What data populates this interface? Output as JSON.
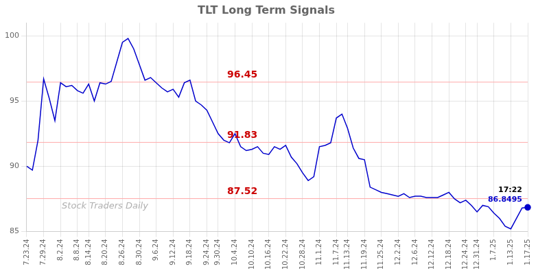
{
  "chart_data": {
    "type": "line",
    "title": "TLT Long Term Signals",
    "categories": [
      "7.23.24",
      null,
      null,
      "7.29.24",
      null,
      null,
      "8.2.24",
      null,
      null,
      "8.8.24",
      null,
      "8.14.24",
      null,
      null,
      "8.20.24",
      null,
      null,
      "8.26.24",
      null,
      null,
      "8.30.24",
      null,
      null,
      "9.6.24",
      null,
      null,
      "9.12.24",
      null,
      null,
      "9.18.24",
      null,
      null,
      "9.24.24",
      null,
      "9.30.24",
      null,
      null,
      "10.4.24",
      null,
      null,
      "10.10.24",
      null,
      null,
      "10.16.24",
      null,
      null,
      "10.22.24",
      null,
      null,
      "10.28.24",
      null,
      null,
      "11.1.24",
      null,
      null,
      "11.7.24",
      null,
      "11.13.24",
      null,
      null,
      "11.19.24",
      null,
      null,
      "11.25.24",
      null,
      null,
      "12.2.24",
      null,
      null,
      "12.6.24",
      null,
      null,
      "12.12.24",
      null,
      null,
      "12.18.24",
      null,
      null,
      "12.24.24",
      null,
      "12.31.24",
      null,
      null,
      "1.7.25",
      null,
      null,
      "1.13.25",
      null,
      null,
      "1.17.25"
    ],
    "values": [
      90.0,
      89.7,
      92.0,
      96.7,
      95.2,
      93.5,
      96.4,
      96.1,
      96.2,
      95.8,
      95.6,
      96.3,
      95.0,
      96.4,
      96.3,
      96.5,
      98.0,
      99.5,
      99.8,
      99.0,
      97.8,
      96.6,
      96.8,
      96.4,
      96.0,
      95.7,
      95.9,
      95.3,
      96.4,
      96.6,
      95.0,
      94.7,
      94.3,
      93.4,
      92.5,
      92.0,
      91.8,
      92.5,
      91.5,
      91.2,
      91.3,
      91.5,
      91.0,
      90.9,
      91.5,
      91.3,
      91.6,
      90.7,
      90.2,
      89.5,
      88.9,
      89.2,
      91.5,
      91.6,
      91.8,
      93.7,
      94.0,
      92.9,
      91.4,
      90.6,
      90.5,
      88.4,
      88.2,
      88.0,
      87.9,
      87.8,
      87.7,
      87.9,
      87.6,
      87.7,
      87.7,
      87.6,
      87.6,
      87.6,
      87.8,
      88.0,
      87.5,
      87.2,
      87.4,
      87.0,
      86.5,
      87.0,
      86.9,
      86.4,
      86.0,
      85.4,
      85.2,
      86.0,
      86.8,
      86.8495
    ],
    "color": "#0000cc",
    "ylim": [
      85,
      101
    ],
    "yticks": [
      85,
      90,
      95,
      100
    ],
    "grid": true,
    "hlines": {
      "values": [
        96.45,
        91.83,
        87.52
      ],
      "labels": [
        "96.45",
        "91.83",
        "87.52"
      ],
      "color": "#ffaaaa",
      "label_color": "#cc0000"
    },
    "annotations": [
      {
        "text": "17:22",
        "color": "#000000"
      },
      {
        "text": "86.8495",
        "color": "#0000cc"
      }
    ],
    "watermark": {
      "text": "Stock Traders Daily",
      "color": "#b0b0b0"
    }
  }
}
